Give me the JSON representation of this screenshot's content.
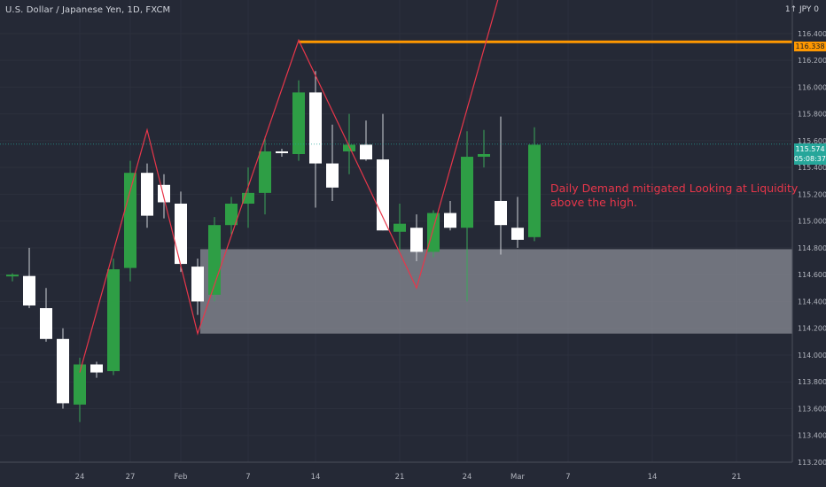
{
  "header": {
    "symbol_title": "U.S. Dollar / Japanese Yen, 1D, FXCM",
    "currency_label": "1↑ JPY 0"
  },
  "annotation": {
    "line1": "Daily Demand mitigated Looking at Liquidity",
    "line2": "above the high."
  },
  "price_tags": {
    "resistance": "116.338",
    "last_price": "115.574",
    "countdown": "05:08:37"
  },
  "colors": {
    "background": "#252936",
    "bull": "#2e9e45",
    "bear": "#ffffff",
    "resistance": "#ff9800",
    "zigzag": "#e8364a",
    "zone": "#8a8c96"
  },
  "chart_data": {
    "type": "candlestick",
    "title": "U.S. Dollar / Japanese Yen, 1D, FXCM",
    "y_range": [
      113.2,
      116.65
    ],
    "y_ticks": [
      "113.200",
      "113.400",
      "113.600",
      "113.800",
      "114.000",
      "114.200",
      "114.400",
      "114.600",
      "114.800",
      "115.000",
      "115.200",
      "115.400",
      "115.600",
      "115.800",
      "116.000",
      "116.200",
      "116.400"
    ],
    "x_ticks": [
      "24",
      "27",
      "Feb",
      "7",
      "14",
      "21",
      "24",
      "Mar",
      "7",
      "14",
      "21"
    ],
    "candles": [
      {
        "o": 114.6,
        "h": 114.61,
        "l": 114.55,
        "c": 114.6
      },
      {
        "o": 114.59,
        "h": 114.8,
        "l": 114.35,
        "c": 114.37
      },
      {
        "o": 114.35,
        "h": 114.5,
        "l": 114.1,
        "c": 114.12
      },
      {
        "o": 114.12,
        "h": 114.2,
        "l": 113.6,
        "c": 113.64
      },
      {
        "o": 113.63,
        "h": 113.98,
        "l": 113.5,
        "c": 113.93
      },
      {
        "o": 113.93,
        "h": 113.95,
        "l": 113.83,
        "c": 113.87
      },
      {
        "o": 113.88,
        "h": 114.72,
        "l": 113.85,
        "c": 114.64
      },
      {
        "o": 114.65,
        "h": 115.45,
        "l": 114.55,
        "c": 115.36
      },
      {
        "o": 115.36,
        "h": 115.43,
        "l": 114.95,
        "c": 115.04
      },
      {
        "o": 115.27,
        "h": 115.35,
        "l": 115.02,
        "c": 115.14
      },
      {
        "o": 115.13,
        "h": 115.22,
        "l": 114.62,
        "c": 114.68
      },
      {
        "o": 114.66,
        "h": 114.72,
        "l": 114.3,
        "c": 114.4
      },
      {
        "o": 114.45,
        "h": 115.03,
        "l": 114.4,
        "c": 114.97
      },
      {
        "o": 114.97,
        "h": 115.18,
        "l": 114.9,
        "c": 115.13
      },
      {
        "o": 115.13,
        "h": 115.4,
        "l": 114.95,
        "c": 115.21
      },
      {
        "o": 115.21,
        "h": 115.63,
        "l": 115.05,
        "c": 115.52
      },
      {
        "o": 115.52,
        "h": 115.54,
        "l": 115.48,
        "c": 115.51
      },
      {
        "o": 115.5,
        "h": 116.05,
        "l": 115.45,
        "c": 115.96
      },
      {
        "o": 115.96,
        "h": 116.12,
        "l": 115.1,
        "c": 115.43
      },
      {
        "o": 115.43,
        "h": 115.72,
        "l": 115.15,
        "c": 115.25
      },
      {
        "o": 115.52,
        "h": 115.8,
        "l": 115.35,
        "c": 115.57
      },
      {
        "o": 115.57,
        "h": 115.75,
        "l": 115.45,
        "c": 115.46
      },
      {
        "o": 115.46,
        "h": 115.8,
        "l": 114.93,
        "c": 114.93
      },
      {
        "o": 114.92,
        "h": 115.13,
        "l": 114.78,
        "c": 114.98
      },
      {
        "o": 114.95,
        "h": 115.05,
        "l": 114.7,
        "c": 114.77
      },
      {
        "o": 114.77,
        "h": 115.08,
        "l": 114.73,
        "c": 115.06
      },
      {
        "o": 115.06,
        "h": 115.15,
        "l": 114.93,
        "c": 114.95
      },
      {
        "o": 114.95,
        "h": 115.67,
        "l": 114.4,
        "c": 115.48
      },
      {
        "o": 115.48,
        "h": 115.68,
        "l": 115.4,
        "c": 115.5
      },
      {
        "o": 115.15,
        "h": 115.78,
        "l": 114.75,
        "c": 114.97
      },
      {
        "o": 114.95,
        "h": 115.18,
        "l": 114.8,
        "c": 114.86
      },
      {
        "o": 114.88,
        "h": 115.7,
        "l": 114.85,
        "c": 115.57
      }
    ],
    "horizontal_line": {
      "price": 116.338,
      "label": "116.338"
    },
    "last_price": {
      "price": 115.574,
      "label": "115.574"
    },
    "demand_zone": {
      "high": 114.79,
      "low": 114.16
    },
    "zigzag": [
      {
        "i": 4,
        "price": 113.87
      },
      {
        "i": 8,
        "price": 115.68
      },
      {
        "i": 11,
        "price": 114.16
      },
      {
        "i": 17,
        "price": 116.35
      },
      {
        "i": 24,
        "price": 114.5
      },
      {
        "i": 29.5,
        "price": 116.95
      }
    ]
  }
}
